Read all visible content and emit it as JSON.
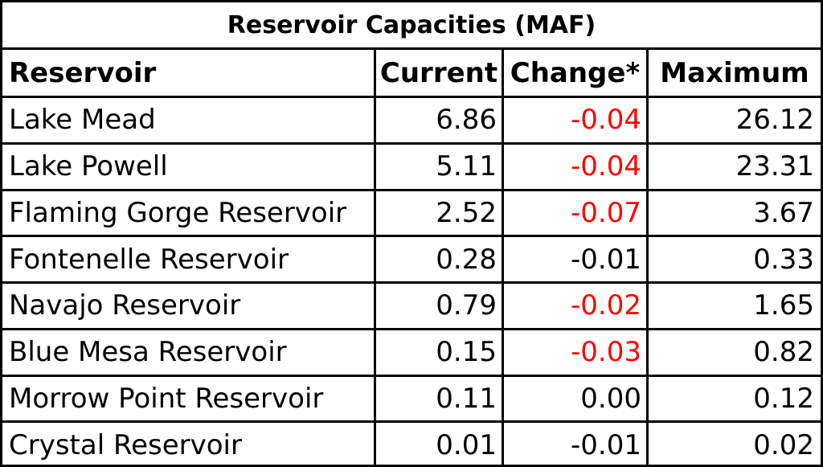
{
  "table": {
    "title": "Reservoir Capacities (MAF)",
    "columns": [
      "Reservoir",
      "Current",
      "Change*",
      "Maximum"
    ],
    "rows": [
      {
        "name": "Lake Mead",
        "current": "6.86",
        "change": "-0.04",
        "maximum": "26.12",
        "change_red": true
      },
      {
        "name": "Lake Powell",
        "current": "5.11",
        "change": "-0.04",
        "maximum": "23.31",
        "change_red": true
      },
      {
        "name": "Flaming Gorge Reservoir",
        "current": "2.52",
        "change": "-0.07",
        "maximum": "3.67",
        "change_red": true
      },
      {
        "name": "Fontenelle Reservoir",
        "current": "0.28",
        "change": "-0.01",
        "maximum": "0.33",
        "change_red": false
      },
      {
        "name": "Navajo Reservoir",
        "current": "0.79",
        "change": "-0.02",
        "maximum": "1.65",
        "change_red": true
      },
      {
        "name": "Blue Mesa Reservoir",
        "current": "0.15",
        "change": "-0.03",
        "maximum": "0.82",
        "change_red": true
      },
      {
        "name": "Morrow Point Reservoir",
        "current": "0.11",
        "change": "0.00",
        "maximum": "0.12",
        "change_red": false
      },
      {
        "name": "Crystal Reservoir",
        "current": "0.01",
        "change": "-0.01",
        "maximum": "0.02",
        "change_red": false
      }
    ]
  },
  "colors": {
    "negative_highlight": "#ff0000",
    "text": "#000000",
    "border": "#000000"
  },
  "chart_data": {
    "type": "table",
    "title": "Reservoir Capacities (MAF)",
    "columns": [
      "Reservoir",
      "Current",
      "Change*",
      "Maximum"
    ],
    "rows": [
      [
        "Lake Mead",
        6.86,
        -0.04,
        26.12
      ],
      [
        "Lake Powell",
        5.11,
        -0.04,
        23.31
      ],
      [
        "Flaming Gorge Reservoir",
        2.52,
        -0.07,
        3.67
      ],
      [
        "Fontenelle Reservoir",
        0.28,
        -0.01,
        0.33
      ],
      [
        "Navajo Reservoir",
        0.79,
        -0.02,
        1.65
      ],
      [
        "Blue Mesa Reservoir",
        0.15,
        -0.03,
        0.82
      ],
      [
        "Morrow Point Reservoir",
        0.11,
        0.0,
        0.12
      ],
      [
        "Crystal Reservoir",
        0.01,
        -0.01,
        0.02
      ]
    ]
  }
}
